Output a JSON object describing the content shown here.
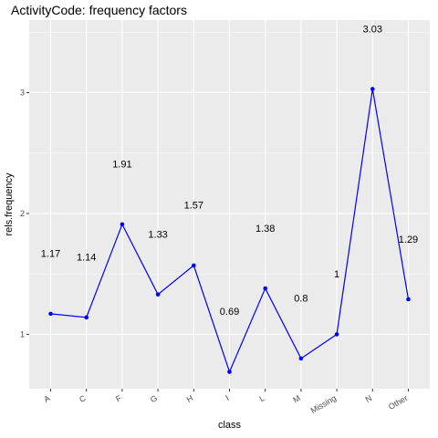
{
  "chart_data": {
    "type": "line",
    "title": "ActivityCode: frequency factors",
    "xlabel": "class",
    "ylabel": "rels.frequency",
    "categories": [
      "A",
      "C",
      "F",
      "G",
      "H",
      "I",
      "L",
      "M",
      "Missing",
      "N",
      "Other"
    ],
    "values": [
      1.17,
      1.14,
      1.91,
      1.33,
      1.57,
      0.69,
      1.38,
      0.8,
      1,
      3.03,
      1.29
    ],
    "data_labels": [
      "1.17",
      "1.14",
      "1.91",
      "1.33",
      "1.57",
      "0.69",
      "1.38",
      "0.8",
      "1",
      "3.03",
      "1.29"
    ],
    "ylim": [
      0.55,
      3.6
    ],
    "yticks": [
      1,
      2,
      3
    ],
    "grid": true,
    "line_color": "#0000ff",
    "panel_color": "#ebebeb",
    "grid_color": "#ffffff",
    "label_offset": 0.5
  }
}
